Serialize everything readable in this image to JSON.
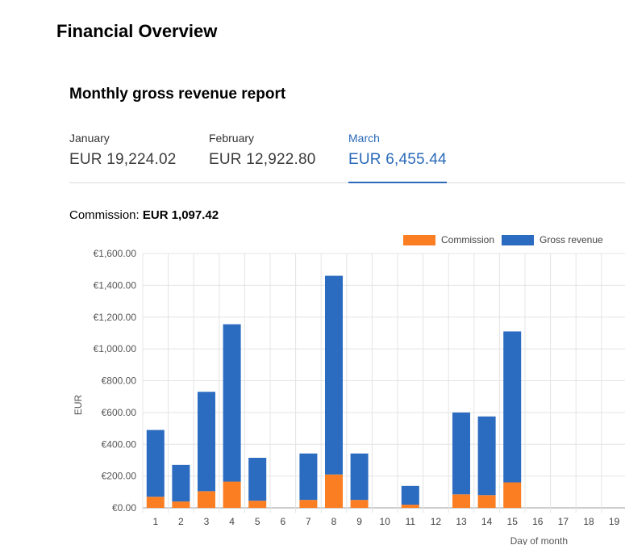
{
  "header": {
    "title": "Financial Overview"
  },
  "report": {
    "title": "Monthly gross revenue report",
    "tabs": [
      {
        "month": "January",
        "amount": "EUR 19,224.02",
        "active": false
      },
      {
        "month": "February",
        "amount": "EUR 12,922.80",
        "active": false
      },
      {
        "month": "March",
        "amount": "EUR 6,455.44",
        "active": true
      }
    ],
    "commission_label": "Commission:",
    "commission_value": "EUR 1,097.42"
  },
  "colors": {
    "commission": "#fb7e22",
    "gross_revenue": "#2b6bc0",
    "accent": "#2a6ab8"
  },
  "chart_data": {
    "type": "bar",
    "stacked": true,
    "categories": [
      "1",
      "2",
      "3",
      "4",
      "5",
      "6",
      "7",
      "8",
      "9",
      "10",
      "11",
      "12",
      "13",
      "14",
      "15",
      "16",
      "17",
      "18",
      "19"
    ],
    "series": [
      {
        "name": "Commission",
        "color": "#fb7e22",
        "values": [
          70,
          40,
          105,
          165,
          45,
          0,
          50,
          210,
          50,
          0,
          20,
          0,
          85,
          80,
          160,
          0,
          0,
          0,
          0
        ]
      },
      {
        "name": "Gross revenue",
        "color": "#2b6bc0",
        "values": [
          420,
          230,
          625,
          990,
          270,
          0,
          292,
          1250,
          292,
          0,
          118,
          0,
          515,
          495,
          950,
          0,
          0,
          0,
          0
        ]
      }
    ],
    "ylabel": "EUR",
    "xlabel": "Day of month",
    "ylim": [
      0,
      1600
    ],
    "yticks": [
      "€0.00",
      "€200.00",
      "€400.00",
      "€600.00",
      "€800.00",
      "€1,000.00",
      "€1,200.00",
      "€1,400.00",
      "€1,600.00"
    ],
    "grid": true,
    "legend": "top-right"
  }
}
